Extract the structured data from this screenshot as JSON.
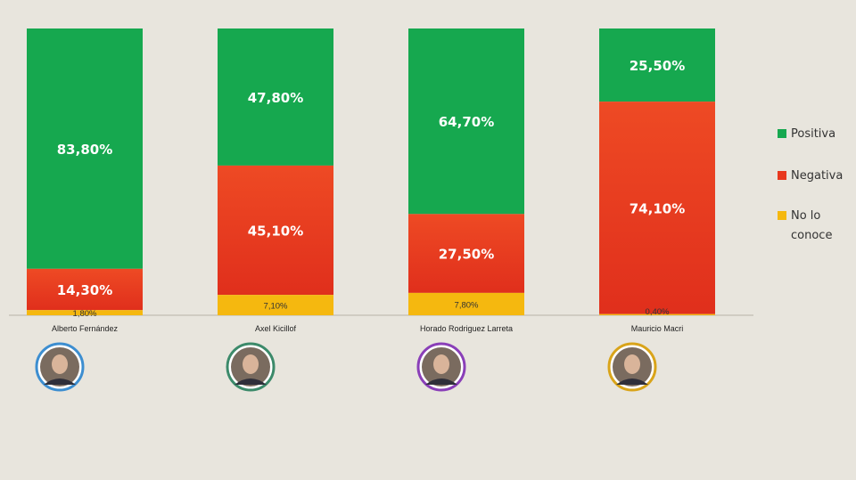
{
  "chart_data": {
    "type": "bar",
    "stacked": true,
    "categories": [
      "Alberto Fernández",
      "Axel Kicillof",
      "Horado Rodriguez Larreta",
      "Mauricio Macri"
    ],
    "series": [
      {
        "name": "Positiva",
        "color": "#16a84f",
        "values": [
          83.8,
          47.8,
          64.7,
          25.5
        ],
        "labels": [
          "83,80%",
          "47,80%",
          "64,70%",
          "25,50%"
        ]
      },
      {
        "name": "Negativa",
        "color": "#e8381e",
        "values": [
          14.3,
          45.1,
          27.5,
          74.1
        ],
        "labels": [
          "14,30%",
          "45,10%",
          "27,50%",
          "74,10%"
        ]
      },
      {
        "name": "No lo conoce",
        "color": "#f5b80f",
        "values": [
          1.8,
          7.1,
          7.8,
          0.4
        ],
        "labels": [
          "1,80%",
          "7,10%",
          "7,80%",
          "0,40%"
        ]
      }
    ],
    "ylim": [
      0,
      100
    ],
    "legend_position": "right",
    "legend": [
      {
        "name": "Positiva",
        "color": "#16a84f"
      },
      {
        "name": "Negativa",
        "color": "#e8381e"
      },
      {
        "name": "No lo conoce",
        "color": "#f5b80f"
      }
    ],
    "avatar_ring_colors": [
      "#3d8ed0",
      "#3c8a6a",
      "#8a3fb8",
      "#d9a41a"
    ]
  }
}
